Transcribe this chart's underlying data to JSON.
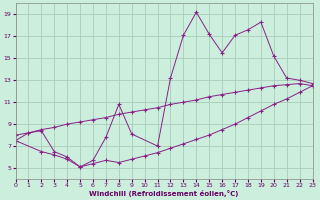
{
  "xlabel": "Windchill (Refroidissement éolien,°C)",
  "bg_color": "#cceedd",
  "grid_color": "#aaccbb",
  "line_color": "#882288",
  "xmin": 0,
  "xmax": 23,
  "ymin": 4,
  "ymax": 20,
  "yticks": [
    5,
    7,
    9,
    11,
    13,
    15,
    17,
    19
  ],
  "xticks": [
    0,
    1,
    2,
    3,
    4,
    5,
    6,
    7,
    8,
    9,
    10,
    11,
    12,
    13,
    14,
    15,
    16,
    17,
    18,
    19,
    20,
    21,
    22,
    23
  ],
  "s1_x": [
    0,
    1,
    2,
    3,
    4,
    5,
    6,
    7,
    8,
    9,
    11,
    12,
    13,
    14,
    15,
    16,
    17,
    18,
    19,
    20,
    21,
    22,
    23
  ],
  "s1_y": [
    7.5,
    8.2,
    8.4,
    6.5,
    6.0,
    5.1,
    5.7,
    7.8,
    10.8,
    8.1,
    7.0,
    13.2,
    17.1,
    19.2,
    17.2,
    15.5,
    17.1,
    17.6,
    18.3,
    15.2,
    13.2,
    13.0,
    12.7
  ],
  "s2_x": [
    0,
    1,
    2,
    3,
    4,
    5,
    6,
    7,
    8,
    9,
    10,
    11,
    12,
    13,
    14,
    15,
    16,
    17,
    18,
    19,
    20,
    21,
    22,
    23
  ],
  "s2_y": [
    8.0,
    8.2,
    8.5,
    8.7,
    9.0,
    9.2,
    9.4,
    9.6,
    9.9,
    10.1,
    10.3,
    10.5,
    10.8,
    11.0,
    11.2,
    11.5,
    11.7,
    11.9,
    12.1,
    12.3,
    12.5,
    12.6,
    12.7,
    12.5
  ],
  "s3_x": [
    0,
    2,
    3,
    4,
    5,
    6,
    7,
    8,
    9,
    10,
    11,
    12,
    13,
    14,
    15,
    16,
    17,
    18,
    19,
    20,
    21,
    22,
    23
  ],
  "s3_y": [
    7.5,
    6.5,
    6.2,
    5.8,
    5.1,
    5.4,
    5.7,
    5.5,
    5.8,
    6.1,
    6.4,
    6.8,
    7.2,
    7.6,
    8.0,
    8.5,
    9.0,
    9.6,
    10.2,
    10.8,
    11.3,
    11.9,
    12.5
  ]
}
